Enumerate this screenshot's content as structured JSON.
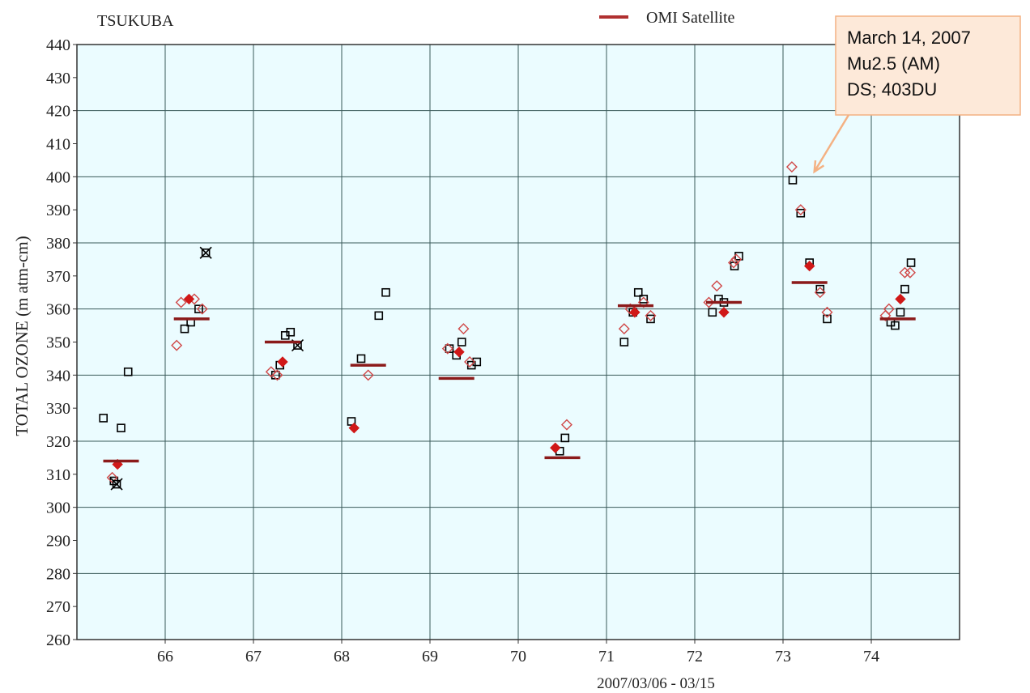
{
  "chart_data": {
    "type": "scatter",
    "station": "TSUKUBA",
    "ylabel": "TOTAL OZONE (m atm-cm)",
    "xlabel": "2007/03/06 - 03/15",
    "ylim": [
      260,
      440
    ],
    "yticks": [
      260,
      270,
      280,
      290,
      300,
      310,
      320,
      330,
      340,
      350,
      360,
      370,
      380,
      390,
      400,
      410,
      420,
      430,
      440
    ],
    "xlim": [
      65,
      75
    ],
    "xticks": [
      "66",
      "67",
      "68",
      "69",
      "70",
      "71",
      "72",
      "73",
      "74"
    ],
    "grid": true,
    "legend": {
      "label": "OMI Satellite",
      "color": "#b03030",
      "placement": "top-center"
    },
    "annotation": {
      "lines": [
        "March 14, 2007",
        "Mu2.5 (AM)",
        "DS; 403DU"
      ],
      "fill": "#fde9d9",
      "border": "#f4b183",
      "points_to": {
        "x": 73.3,
        "y": 403
      }
    },
    "colors": {
      "background": "#ebfcff",
      "grid": "#3a5a5a",
      "square_series": "#000000",
      "open_diamond_series": "#d04848",
      "filled_diamond_series": "#d01818",
      "crossed_marker": "#000000",
      "omi_bar": "#8b1a1a"
    },
    "series": [
      {
        "marker": "open-square",
        "points": [
          [
            65.3,
            327
          ],
          [
            65.42,
            308
          ],
          [
            65.5,
            324
          ],
          [
            65.58,
            341
          ],
          [
            66.22,
            354
          ],
          [
            66.29,
            356
          ],
          [
            66.38,
            360
          ],
          [
            67.25,
            340
          ],
          [
            67.3,
            343
          ],
          [
            67.36,
            352
          ],
          [
            67.42,
            353
          ],
          [
            68.11,
            326
          ],
          [
            68.22,
            345
          ],
          [
            68.42,
            358
          ],
          [
            68.5,
            365
          ],
          [
            69.22,
            348
          ],
          [
            69.3,
            346
          ],
          [
            69.36,
            350
          ],
          [
            69.47,
            343
          ],
          [
            69.53,
            344
          ],
          [
            70.47,
            317
          ],
          [
            70.53,
            321
          ],
          [
            71.2,
            350
          ],
          [
            71.3,
            359
          ],
          [
            71.36,
            365
          ],
          [
            71.42,
            363
          ],
          [
            71.5,
            357
          ],
          [
            72.2,
            359
          ],
          [
            72.27,
            363
          ],
          [
            72.33,
            362
          ],
          [
            72.45,
            373
          ],
          [
            72.5,
            376
          ],
          [
            73.11,
            399
          ],
          [
            73.2,
            389
          ],
          [
            73.3,
            374
          ],
          [
            73.42,
            366
          ],
          [
            73.5,
            357
          ],
          [
            74.22,
            356
          ],
          [
            74.27,
            355
          ],
          [
            74.33,
            359
          ],
          [
            74.38,
            366
          ],
          [
            74.45,
            374
          ]
        ]
      },
      {
        "marker": "open-diamond",
        "points": [
          [
            65.4,
            309
          ],
          [
            66.13,
            349
          ],
          [
            66.18,
            362
          ],
          [
            66.33,
            363
          ],
          [
            66.42,
            360
          ],
          [
            67.2,
            341
          ],
          [
            67.27,
            340
          ],
          [
            68.3,
            340
          ],
          [
            69.2,
            348
          ],
          [
            69.38,
            354
          ],
          [
            69.45,
            344
          ],
          [
            70.55,
            325
          ],
          [
            71.2,
            354
          ],
          [
            71.27,
            360
          ],
          [
            71.42,
            362
          ],
          [
            71.5,
            358
          ],
          [
            72.16,
            362
          ],
          [
            72.25,
            367
          ],
          [
            72.44,
            374
          ],
          [
            72.47,
            375
          ],
          [
            73.1,
            403
          ],
          [
            73.2,
            390
          ],
          [
            73.42,
            365
          ],
          [
            73.5,
            359
          ],
          [
            74.16,
            358
          ],
          [
            74.2,
            360
          ],
          [
            74.38,
            371
          ],
          [
            74.44,
            371
          ]
        ]
      },
      {
        "marker": "filled-diamond",
        "points": [
          [
            65.46,
            313
          ],
          [
            66.27,
            363
          ],
          [
            67.33,
            344
          ],
          [
            68.14,
            324
          ],
          [
            69.33,
            347
          ],
          [
            70.42,
            318
          ],
          [
            71.32,
            359
          ],
          [
            72.33,
            359
          ],
          [
            73.3,
            373
          ],
          [
            74.33,
            363
          ]
        ]
      },
      {
        "marker": "crossed-square",
        "points": [
          [
            65.45,
            307
          ],
          [
            66.46,
            377
          ],
          [
            67.5,
            349
          ]
        ]
      },
      {
        "name": "OMI Satellite",
        "marker": "bar",
        "points": [
          [
            65.5,
            314
          ],
          [
            66.3,
            357
          ],
          [
            67.33,
            350
          ],
          [
            68.3,
            343
          ],
          [
            69.3,
            339
          ],
          [
            70.5,
            315
          ],
          [
            71.33,
            361
          ],
          [
            72.33,
            362
          ],
          [
            73.3,
            368
          ],
          [
            74.3,
            357
          ]
        ]
      }
    ]
  }
}
